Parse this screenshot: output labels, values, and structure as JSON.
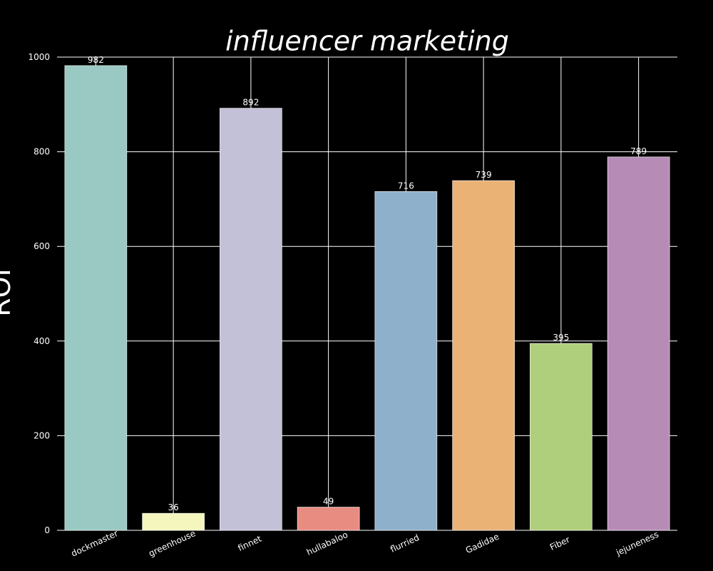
{
  "chart_data": {
    "type": "bar",
    "title": "influencer marketing",
    "y_label": "ROI",
    "categories": [
      "dockmaster",
      "greenhouse",
      "finnet",
      "hullabaloo",
      "flurried",
      "Gadidae",
      "Fiber",
      "jejuneness"
    ],
    "values": [
      982,
      36,
      892,
      49,
      716,
      739,
      395,
      789
    ],
    "colors": [
      "#99c9c2",
      "#f4f6bd",
      "#c3c1d7",
      "#e88c82",
      "#8eb0cb",
      "#ebb276",
      "#b0cf7c",
      "#b68cb7"
    ],
    "ylim": [
      0,
      1000
    ],
    "yticks": [
      0,
      200,
      400,
      600,
      800,
      1000
    ],
    "grid": true
  }
}
